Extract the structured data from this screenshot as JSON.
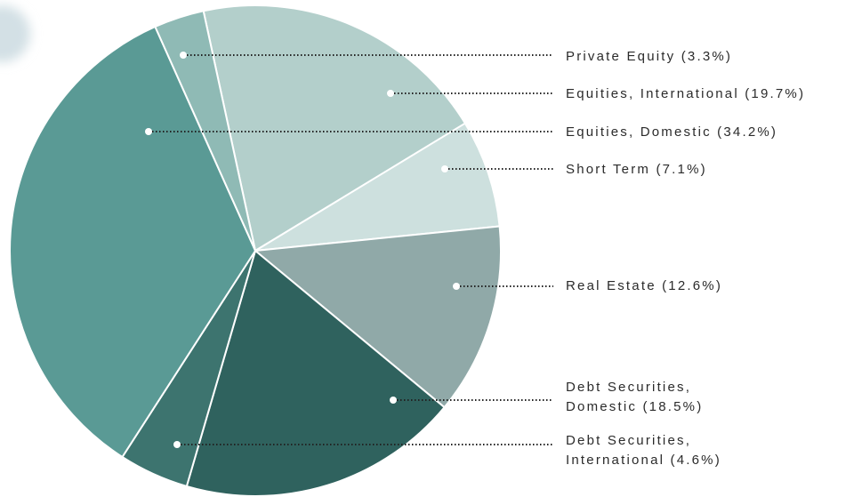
{
  "chart_data": {
    "type": "pie",
    "categories": [
      "Equities, International (19.7%)",
      "Short Term (7.1%)",
      "Real Estate (12.6%)",
      "Debt Securities,\nDomestic (18.5%)",
      "Debt Securities,\nInternational (4.6%)",
      "Equities, Domestic (34.2%)",
      "Private Equity (3.3%)"
    ],
    "values": [
      19.7,
      7.1,
      12.6,
      18.5,
      4.6,
      34.2,
      3.3
    ],
    "colors": [
      "#b3cfcb",
      "#cde0de",
      "#90a9a8",
      "#2f625e",
      "#3d746f",
      "#5a9a95",
      "#8fbab5"
    ]
  }
}
